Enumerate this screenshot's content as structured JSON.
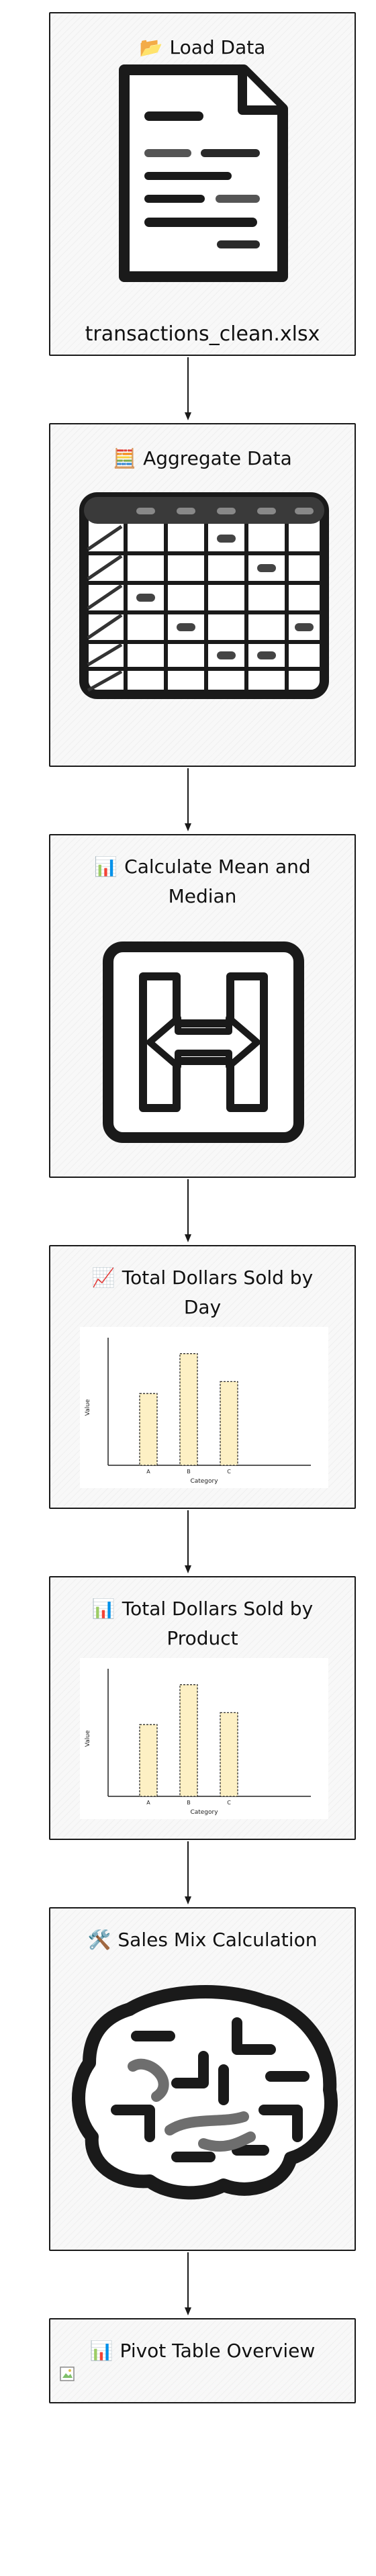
{
  "steps": [
    {
      "icon": "📂",
      "title": "Load Data",
      "caption": "transactions_clean.xlsx"
    },
    {
      "icon": "🧮",
      "title": "Aggregate Data"
    },
    {
      "icon": "📊",
      "title_line1": "Calculate Mean and",
      "title_line2": "Median"
    },
    {
      "icon": "📈",
      "title_line1": "Total Dollars Sold by",
      "title_line2": "Day",
      "chart": {
        "ylabel": "Value",
        "xlabel": "Category",
        "categories": [
          "A",
          "B",
          "C"
        ]
      }
    },
    {
      "icon": "📊",
      "title_line1": "Total Dollars Sold by",
      "title_line2": "Product",
      "chart": {
        "ylabel": "Value",
        "xlabel": "Category",
        "categories": [
          "A",
          "B",
          "C"
        ]
      }
    },
    {
      "icon": "🛠️",
      "title": "Sales Mix Calculation"
    },
    {
      "icon": "📊",
      "title": "Pivot Table Overview"
    }
  ],
  "colors": {
    "stroke": "#1a1a1a",
    "bar_fill": "#fdf0c4"
  },
  "chart_data": [
    {
      "type": "bar",
      "title": "",
      "xlabel": "Category",
      "ylabel": "Value",
      "categories": [
        "A",
        "B",
        "C"
      ],
      "values": [
        1.8,
        2.8,
        2.1
      ],
      "ylim": [
        0,
        3.2
      ]
    },
    {
      "type": "bar",
      "title": "",
      "xlabel": "Category",
      "ylabel": "Value",
      "categories": [
        "A",
        "B",
        "C"
      ],
      "values": [
        1.8,
        2.8,
        2.1
      ],
      "ylim": [
        0,
        3.2
      ]
    }
  ]
}
